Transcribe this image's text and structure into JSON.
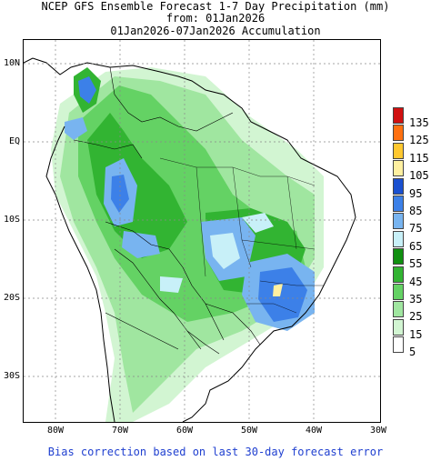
{
  "title_line1": "NCEP GFS Ensemble Forecast 1-7 Day Precipitation (mm)",
  "title_line2": "from: 01Jan2026",
  "title_line3": "01Jan2026-07Jan2026 Accumulation",
  "footer": "Bias correction based on last 30-day forecast error",
  "lat_labels": [
    "10N",
    "EQ",
    "10S",
    "20S",
    "30S"
  ],
  "lon_labels": [
    "80W",
    "70W",
    "60W",
    "50W",
    "40W",
    "30W"
  ],
  "legend": {
    "labels": [
      "135",
      "125",
      "115",
      "105",
      "95",
      "85",
      "75",
      "65",
      "55",
      "45",
      "35",
      "25",
      "15",
      "5"
    ],
    "colors": [
      "#d01010",
      "#ff7010",
      "#ffc830",
      "#fff0a0",
      "#1a50d0",
      "#3c80e8",
      "#78b4f0",
      "#c8f0f8",
      "#109010",
      "#32b432",
      "#64d264",
      "#a0e6a0",
      "#d2f5d2",
      "#ffffff"
    ]
  }
}
